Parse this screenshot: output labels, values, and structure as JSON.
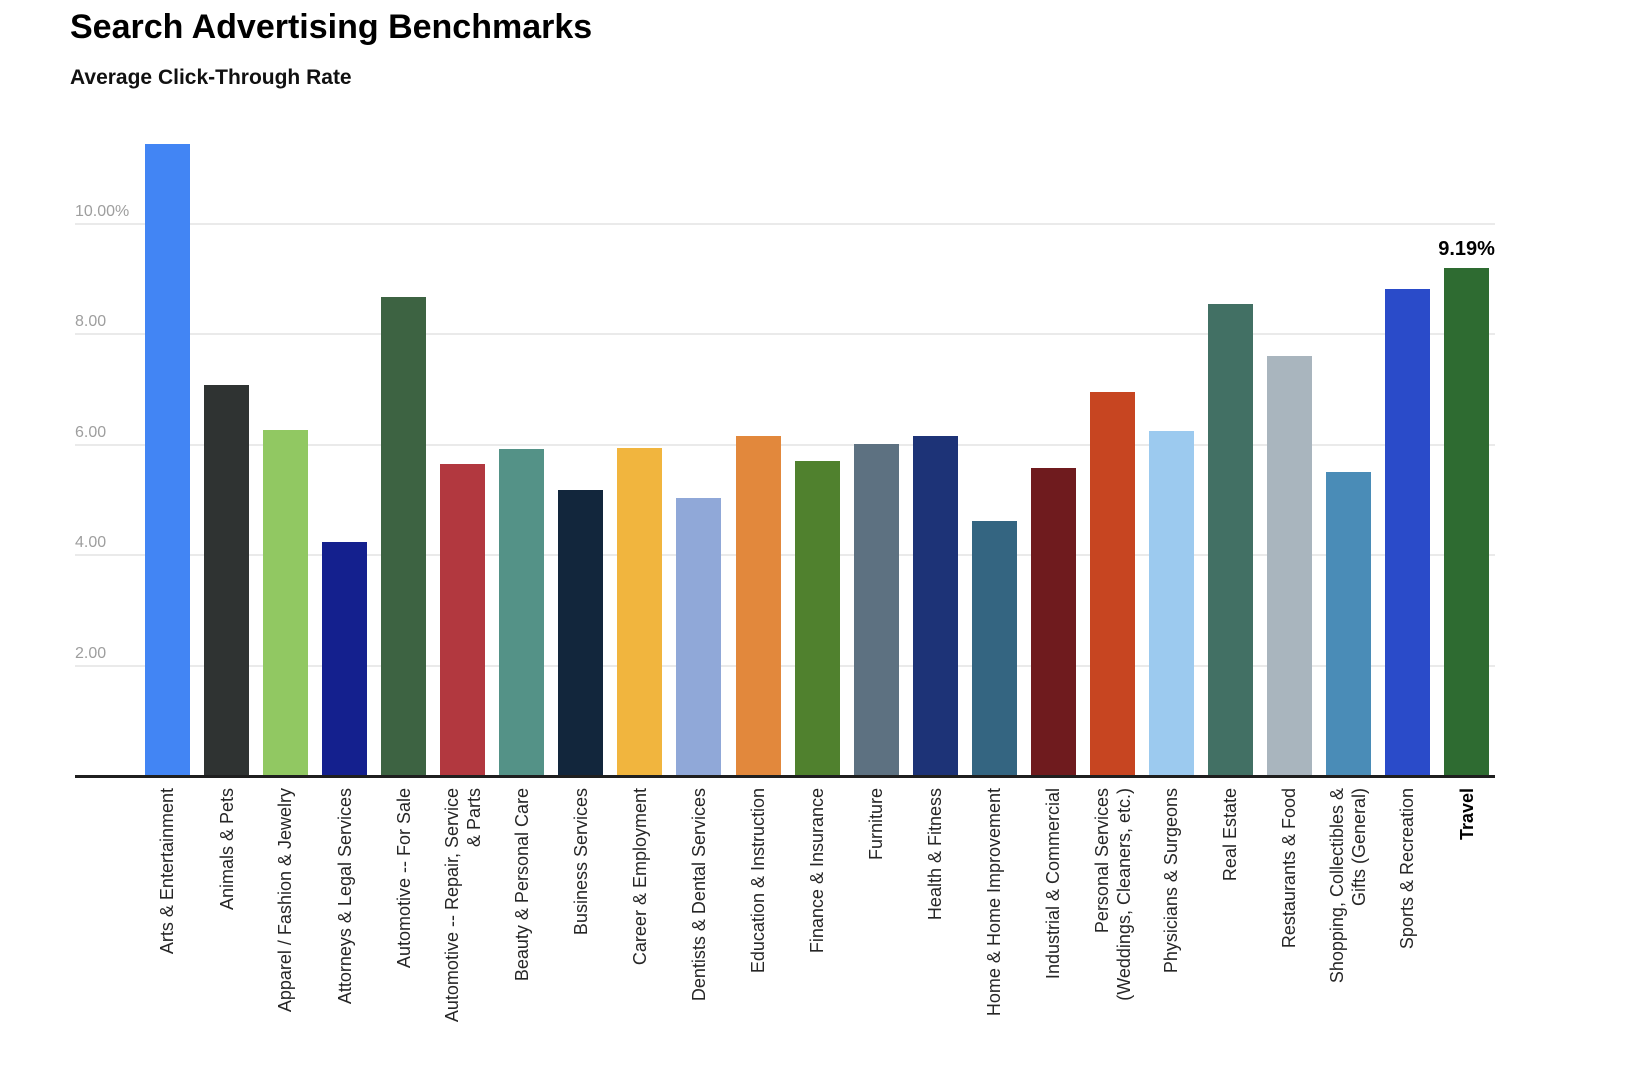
{
  "header": {
    "title": "Search Advertising Benchmarks",
    "subtitle": "Average Click-Through Rate"
  },
  "chart_data": {
    "type": "bar",
    "title": "Search Advertising Benchmarks",
    "subtitle": "Average Click-Through Rate",
    "xlabel": "",
    "ylabel": "",
    "ylim": [
      0,
      11.6
    ],
    "grid": "horizontal",
    "legend": "none",
    "yticks": [
      {
        "value": 2,
        "label": "2.00"
      },
      {
        "value": 4,
        "label": "4.00"
      },
      {
        "value": 6,
        "label": "6.00"
      },
      {
        "value": 8,
        "label": "8.00"
      },
      {
        "value": 10,
        "label": "10.00%"
      }
    ],
    "categories": [
      "Arts & Entertainment",
      "Animals & Pets",
      "Apparel / Fashion & Jewelry",
      "Attorneys & Legal Services",
      "Automotive -- For Sale",
      "Automotive -- Repair, Service & Parts",
      "Beauty & Personal Care",
      "Business Services",
      "Career & Employment",
      "Dentists & Dental Services",
      "Education & Instruction",
      "Finance & Insurance",
      "Furniture",
      "Health & Fitness",
      "Home & Home Improvement",
      "Industrial & Commercial",
      "Personal Services (Weddings, Cleaners, etc.)",
      "Physicians & Surgeons",
      "Real Estate",
      "Restaurants & Food",
      "Shopping, Collectibles & Gifts (General)",
      "Sports & Recreation",
      "Travel"
    ],
    "category_lines": [
      [
        "Arts & Entertainment"
      ],
      [
        "Animals & Pets"
      ],
      [
        "Apparel / Fashion & Jewelry"
      ],
      [
        "Attorneys & Legal Services"
      ],
      [
        "Automotive -- For Sale"
      ],
      [
        "Automotive -- Repair, Service",
        "& Parts"
      ],
      [
        "Beauty & Personal Care"
      ],
      [
        "Business Services"
      ],
      [
        "Career & Employment"
      ],
      [
        "Dentists & Dental Services"
      ],
      [
        "Education & Instruction"
      ],
      [
        "Finance & Insurance"
      ],
      [
        "Furniture"
      ],
      [
        "Health & Fitness"
      ],
      [
        "Home & Home Improvement"
      ],
      [
        "Industrial & Commercial"
      ],
      [
        "Personal Services",
        "(Weddings, Cleaners, etc.)"
      ],
      [
        "Physicians & Surgeons"
      ],
      [
        "Real Estate"
      ],
      [
        "Restaurants & Food"
      ],
      [
        "Shopping, Collectibles &",
        "Gifts (General)"
      ],
      [
        "Sports & Recreation"
      ],
      [
        "Travel"
      ]
    ],
    "values": [
      11.43,
      7.08,
      6.27,
      4.24,
      8.67,
      5.65,
      5.92,
      5.17,
      5.93,
      5.03,
      6.15,
      5.7,
      6.01,
      6.15,
      4.62,
      5.57,
      6.95,
      6.25,
      8.55,
      7.6,
      5.5,
      8.82,
      9.19
    ],
    "bar_colors": [
      "#4285F4",
      "#2F3332",
      "#91C862",
      "#14208E",
      "#3D6342",
      "#B2383F",
      "#549287",
      "#12263C",
      "#F1B53E",
      "#90A8D8",
      "#E2883C",
      "#50812E",
      "#5D7181",
      "#1D3377",
      "#346581",
      "#6F1B1E",
      "#C74521",
      "#9CCAEF",
      "#427064",
      "#A9B5BE",
      "#4A8CB7",
      "#2A4BC9",
      "#2E6B31"
    ],
    "highlight_category": "Travel",
    "annotations": [
      {
        "category": "Travel",
        "text": "9.19%"
      }
    ]
  }
}
